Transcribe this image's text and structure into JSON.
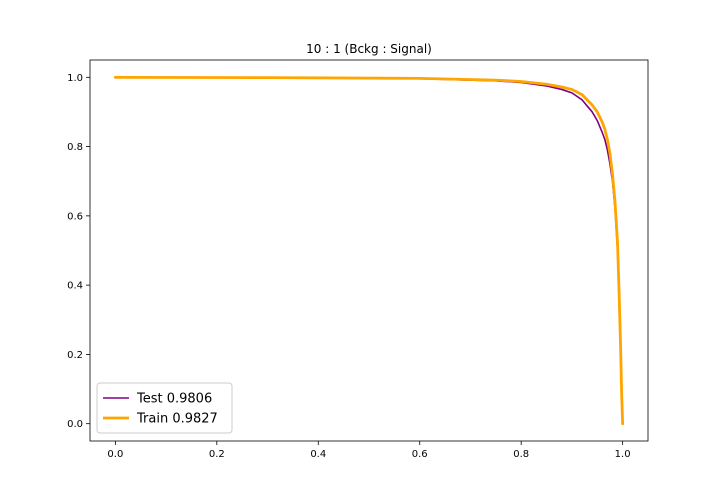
{
  "chart_data": {
    "type": "line",
    "title": "10 : 1  (Bckg : Signal)",
    "xlabel": "",
    "ylabel": "",
    "xlim": [
      -0.05,
      1.05
    ],
    "ylim": [
      -0.05,
      1.05
    ],
    "x_ticks": [
      0.0,
      0.2,
      0.4,
      0.6,
      0.8,
      1.0
    ],
    "x_tick_labels": [
      "0.0",
      "0.2",
      "0.4",
      "0.6",
      "0.8",
      "1.0"
    ],
    "y_ticks": [
      0.0,
      0.2,
      0.4,
      0.6,
      0.8,
      1.0
    ],
    "y_tick_labels": [
      "0.0",
      "0.2",
      "0.4",
      "0.6",
      "0.8",
      "1.0"
    ],
    "grid": false,
    "legend_position": "lower-left",
    "series": [
      {
        "name": "Test",
        "auc": "0.9806",
        "color": "#800080",
        "x": [
          0.0,
          0.3,
          0.6,
          0.75,
          0.8,
          0.85,
          0.88,
          0.9,
          0.92,
          0.94,
          0.95,
          0.96,
          0.965,
          0.97,
          0.975,
          0.98,
          0.985,
          0.99,
          0.993,
          0.996,
          0.998,
          1.0
        ],
        "y": [
          1.0,
          0.999,
          0.996,
          0.99,
          0.985,
          0.975,
          0.965,
          0.955,
          0.935,
          0.9,
          0.875,
          0.84,
          0.82,
          0.79,
          0.75,
          0.7,
          0.62,
          0.5,
          0.35,
          0.2,
          0.08,
          0.0
        ]
      },
      {
        "name": "Train",
        "auc": "0.9827",
        "color": "#FFA500",
        "x": [
          0.0,
          0.3,
          0.6,
          0.75,
          0.8,
          0.85,
          0.88,
          0.9,
          0.92,
          0.94,
          0.95,
          0.96,
          0.965,
          0.97,
          0.975,
          0.98,
          0.985,
          0.99,
          0.993,
          0.996,
          0.998,
          1.0
        ],
        "y": [
          1.0,
          0.999,
          0.997,
          0.992,
          0.988,
          0.98,
          0.972,
          0.965,
          0.95,
          0.92,
          0.9,
          0.87,
          0.85,
          0.82,
          0.78,
          0.72,
          0.64,
          0.52,
          0.38,
          0.22,
          0.09,
          0.0
        ]
      }
    ]
  }
}
